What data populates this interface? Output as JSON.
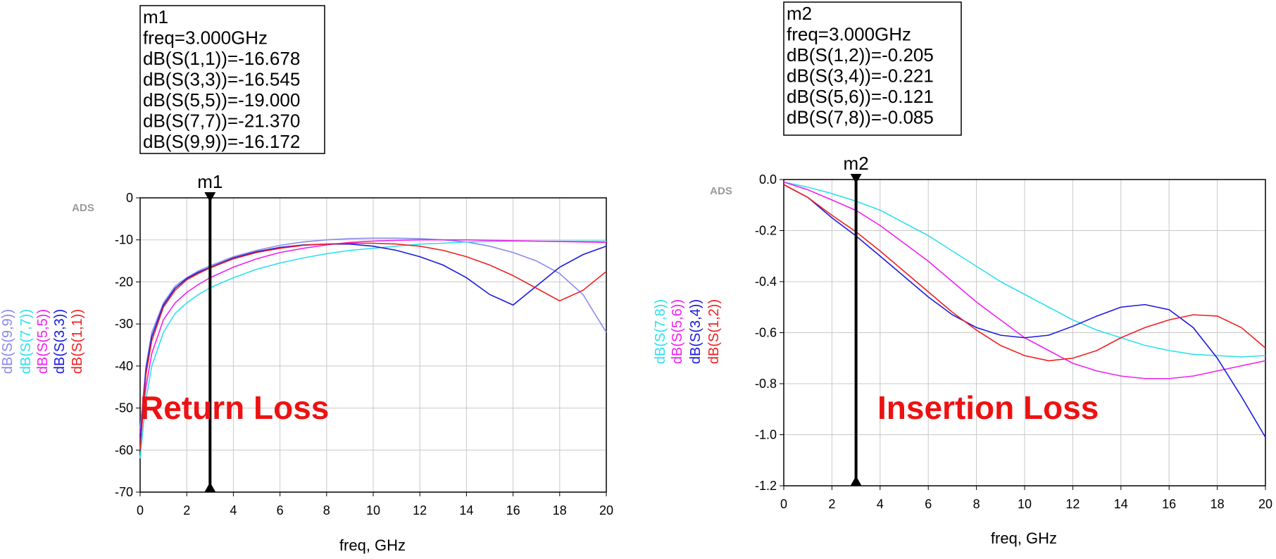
{
  "chart_data": [
    {
      "type": "line",
      "annotation": "Return Loss",
      "logo": "ADS",
      "x_label": "freq, GHz",
      "x": [
        0,
        0.25,
        0.5,
        1,
        1.5,
        2,
        2.5,
        3,
        4,
        5,
        6,
        7,
        8,
        9,
        10,
        11,
        12,
        13,
        14,
        15,
        16,
        17,
        18,
        19,
        20
      ],
      "xlim": [
        0,
        20
      ],
      "xticks": [
        0,
        2,
        4,
        6,
        8,
        10,
        12,
        14,
        16,
        18,
        20
      ],
      "ylim": [
        -70,
        0
      ],
      "yticks": [
        0,
        -10,
        -20,
        -30,
        -40,
        -50,
        -60,
        -70
      ],
      "grid": true,
      "marker": {
        "name": "m1",
        "x": 3,
        "readouts": [
          "freq=3.000GHz",
          "dB(S(1,1))=-16.678",
          "dB(S(3,3))=-16.545",
          "dB(S(5,5))=-19.000",
          "dB(S(7,7))=-21.370",
          "dB(S(9,9))=-16.172"
        ]
      },
      "series": [
        {
          "name": "dB(S(9,9))",
          "color": "#8a8aec",
          "values": [
            -55,
            -40,
            -32,
            -25,
            -21,
            -19,
            -17.4,
            -16.172,
            -14,
            -12.5,
            -11.3,
            -10.5,
            -10,
            -9.7,
            -9.6,
            -9.6,
            -9.7,
            -10,
            -10.5,
            -11.5,
            -13,
            -15,
            -18,
            -23,
            -32
          ]
        },
        {
          "name": "dB(S(7,7))",
          "color": "#30e0ee",
          "values": [
            -62,
            -48,
            -40,
            -32,
            -27.5,
            -25,
            -23,
            -21.37,
            -19,
            -17,
            -15.5,
            -14.3,
            -13.3,
            -12.5,
            -12,
            -11.5,
            -11,
            -10.8,
            -10.5,
            -10.4,
            -10.3,
            -10.3,
            -10.3,
            -10.3,
            -10.3
          ]
        },
        {
          "name": "dB(S(5,5))",
          "color": "#f020f0",
          "values": [
            -56,
            -45,
            -37,
            -29,
            -25,
            -22.5,
            -20.6,
            -19,
            -16.5,
            -14.5,
            -13,
            -12,
            -11.2,
            -10.6,
            -10.3,
            -10.1,
            -10,
            -10,
            -10,
            -10.1,
            -10.2,
            -10.3,
            -10.4,
            -10.5,
            -10.6
          ]
        },
        {
          "name": "dB(S(3,3))",
          "color": "#1a1ae0",
          "values": [
            -58,
            -41,
            -33,
            -25.5,
            -21.5,
            -19.2,
            -17.7,
            -16.545,
            -14.3,
            -12.8,
            -11.8,
            -11.2,
            -11,
            -11,
            -11.5,
            -12.5,
            -14,
            -16,
            -19,
            -23,
            -25.5,
            -21,
            -16.5,
            -13.5,
            -11.5
          ]
        },
        {
          "name": "dB(S(1,1))",
          "color": "#f02020",
          "values": [
            -60,
            -42,
            -34,
            -26,
            -22,
            -19.5,
            -18,
            -16.678,
            -14.5,
            -13,
            -12,
            -11.3,
            -11,
            -10.8,
            -10.8,
            -11,
            -11.5,
            -12.5,
            -14,
            -16,
            -18.5,
            -21.5,
            -24.5,
            -22,
            -17.5
          ]
        }
      ]
    },
    {
      "type": "line",
      "annotation": "Insertion Loss",
      "logo": "ADS",
      "x_label": "freq, GHz",
      "x": [
        0,
        1,
        2,
        3,
        4,
        5,
        6,
        7,
        8,
        9,
        10,
        11,
        12,
        13,
        14,
        15,
        16,
        17,
        18,
        19,
        20
      ],
      "xlim": [
        0,
        20
      ],
      "xticks": [
        0,
        2,
        4,
        6,
        8,
        10,
        12,
        14,
        16,
        18,
        20
      ],
      "ylim": [
        -1.2,
        0
      ],
      "yticks": [
        {
          "value": 0,
          "label": "0.0"
        },
        -0.2,
        -0.4,
        -0.6,
        -0.8,
        {
          "value": -1,
          "label": "-1.0"
        },
        -1.2
      ],
      "grid": true,
      "marker": {
        "name": "m2",
        "x": 3,
        "readouts": [
          "freq=3.000GHz",
          "dB(S(1,2))=-0.205",
          "dB(S(3,4))=-0.221",
          "dB(S(5,6))=-0.121",
          "dB(S(7,8))=-0.085"
        ]
      },
      "series": [
        {
          "name": "dB(S(7,8))",
          "color": "#30e0ee",
          "values": [
            -0.01,
            -0.03,
            -0.055,
            -0.085,
            -0.12,
            -0.17,
            -0.22,
            -0.28,
            -0.34,
            -0.4,
            -0.45,
            -0.5,
            -0.55,
            -0.59,
            -0.62,
            -0.65,
            -0.67,
            -0.685,
            -0.69,
            -0.695,
            -0.69
          ]
        },
        {
          "name": "dB(S(5,6))",
          "color": "#f020f0",
          "values": [
            -0.01,
            -0.04,
            -0.08,
            -0.121,
            -0.18,
            -0.25,
            -0.32,
            -0.4,
            -0.48,
            -0.55,
            -0.62,
            -0.67,
            -0.72,
            -0.75,
            -0.77,
            -0.78,
            -0.78,
            -0.77,
            -0.75,
            -0.73,
            -0.71
          ]
        },
        {
          "name": "dB(S(3,4))",
          "color": "#1a1ae0",
          "values": [
            -0.02,
            -0.07,
            -0.15,
            -0.221,
            -0.3,
            -0.38,
            -0.46,
            -0.53,
            -0.58,
            -0.61,
            -0.62,
            -0.61,
            -0.575,
            -0.535,
            -0.5,
            -0.49,
            -0.51,
            -0.58,
            -0.7,
            -0.85,
            -1.01
          ]
        },
        {
          "name": "dB(S(1,2))",
          "color": "#f02020",
          "values": [
            -0.02,
            -0.07,
            -0.14,
            -0.205,
            -0.28,
            -0.36,
            -0.44,
            -0.52,
            -0.59,
            -0.65,
            -0.69,
            -0.71,
            -0.7,
            -0.67,
            -0.62,
            -0.58,
            -0.55,
            -0.53,
            -0.535,
            -0.58,
            -0.66
          ]
        }
      ]
    }
  ]
}
